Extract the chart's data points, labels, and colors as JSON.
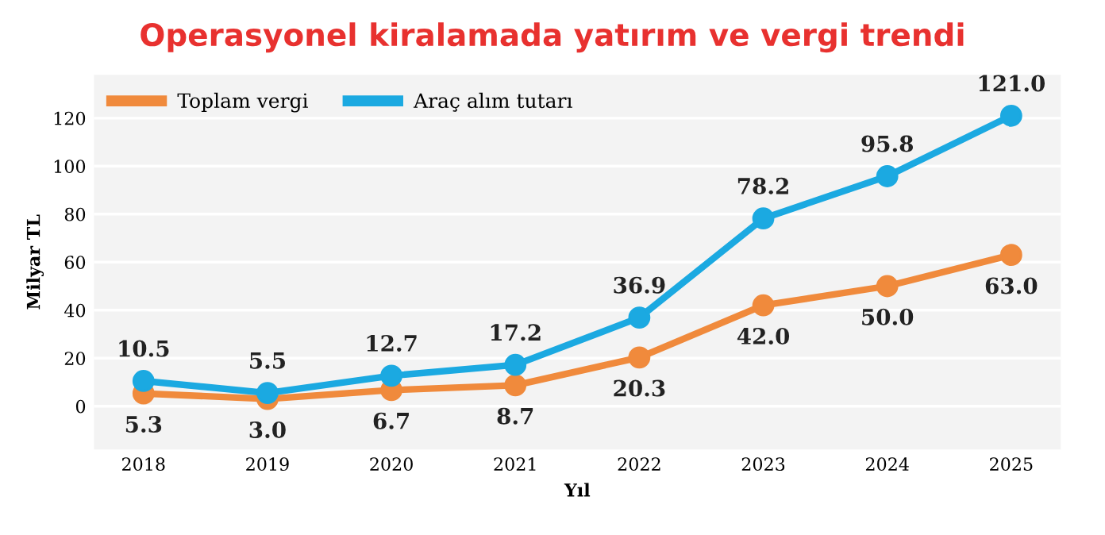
{
  "chart_data": {
    "type": "line",
    "title": "Operasyonel kiralamada yatırım ve vergi trendi",
    "xlabel": "Yıl",
    "ylabel": "Milyar TL",
    "categories": [
      "2018",
      "2019",
      "2020",
      "2021",
      "2022",
      "2023",
      "2024",
      "2025"
    ],
    "series": [
      {
        "name": "Toplam vergi",
        "color": "#f08a3c",
        "values": [
          5.3,
          3.0,
          6.7,
          8.7,
          20.3,
          42.0,
          50.0,
          63.0
        ],
        "value_labels": [
          "5.3",
          "3.0",
          "6.7",
          "8.7",
          "20.3",
          "42.0",
          "50.0",
          "63.0"
        ]
      },
      {
        "name": "Araç alım tutarı",
        "color": "#1ba9e1",
        "values": [
          10.5,
          5.5,
          12.7,
          17.2,
          36.9,
          78.2,
          95.8,
          121.0
        ],
        "value_labels": [
          "10.5",
          "5.5",
          "12.7",
          "17.2",
          "36.9",
          "78.2",
          "95.8",
          "121.0"
        ]
      }
    ],
    "ylim": [
      -18,
      138
    ],
    "yticks": [
      0,
      20,
      40,
      60,
      80,
      100,
      120
    ],
    "grid": "y",
    "legend": "top left",
    "marker": "circle",
    "line_style": "solid"
  }
}
